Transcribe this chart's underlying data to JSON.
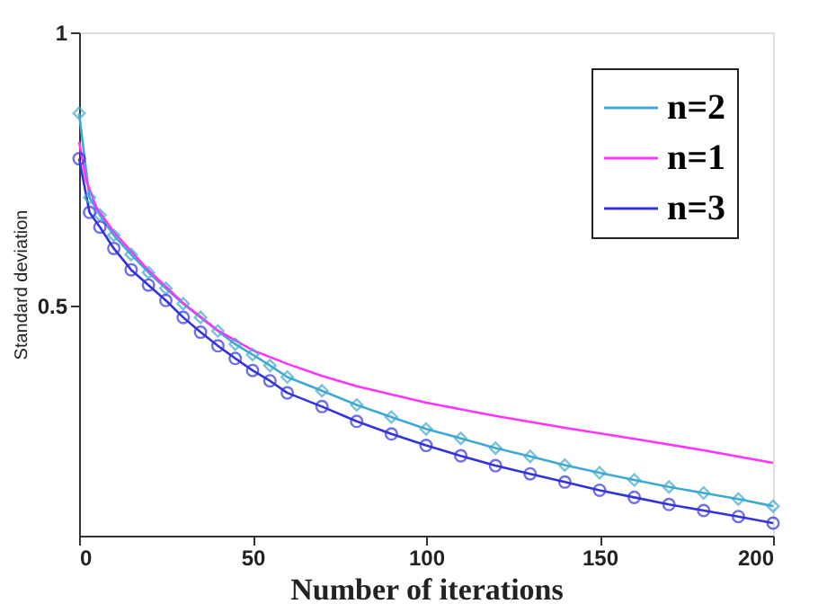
{
  "chart_data": {
    "type": "line",
    "xlabel": "Number of iterations",
    "ylabel": "Standard deviation",
    "xlim": [
      0,
      200
    ],
    "ylim": [
      0.08,
      1
    ],
    "xticks": [
      0,
      50,
      100,
      150,
      200
    ],
    "yticks": [
      0.5,
      1
    ],
    "grid": false,
    "legend": "top right",
    "series": [
      {
        "name": "n=2",
        "color": "#3fa9d0",
        "marker": "diamond",
        "x": [
          0,
          3,
          6,
          10,
          15,
          20,
          25,
          30,
          35,
          40,
          45,
          50,
          55,
          60,
          70,
          80,
          90,
          100,
          110,
          120,
          130,
          140,
          150,
          160,
          170,
          180,
          190,
          200
        ],
        "values": [
          0.852,
          0.698,
          0.666,
          0.629,
          0.594,
          0.561,
          0.532,
          0.504,
          0.479,
          0.454,
          0.43,
          0.411,
          0.391,
          0.37,
          0.345,
          0.319,
          0.297,
          0.275,
          0.258,
          0.24,
          0.225,
          0.209,
          0.195,
          0.182,
          0.169,
          0.158,
          0.147,
          0.134
        ]
      },
      {
        "name": "n=1",
        "color": "#ff33ff",
        "marker": "none",
        "x": [
          0,
          2,
          5,
          10,
          20,
          30,
          40,
          50,
          60,
          70,
          80,
          100,
          120,
          140,
          160,
          180,
          200
        ],
        "values": [
          0.8,
          0.73,
          0.68,
          0.635,
          0.565,
          0.505,
          0.455,
          0.419,
          0.394,
          0.372,
          0.353,
          0.323,
          0.299,
          0.277,
          0.257,
          0.236,
          0.213
        ]
      },
      {
        "name": "n=3",
        "color": "#3333dd",
        "marker": "circle",
        "x": [
          0,
          3,
          6,
          10,
          15,
          20,
          25,
          30,
          35,
          40,
          45,
          50,
          55,
          60,
          70,
          80,
          90,
          100,
          110,
          120,
          130,
          140,
          150,
          160,
          170,
          180,
          190,
          200
        ],
        "values": [
          0.769,
          0.671,
          0.644,
          0.605,
          0.566,
          0.538,
          0.51,
          0.479,
          0.452,
          0.427,
          0.404,
          0.382,
          0.363,
          0.341,
          0.316,
          0.289,
          0.266,
          0.245,
          0.226,
          0.208,
          0.193,
          0.178,
          0.163,
          0.15,
          0.137,
          0.126,
          0.115,
          0.103
        ]
      }
    ]
  }
}
